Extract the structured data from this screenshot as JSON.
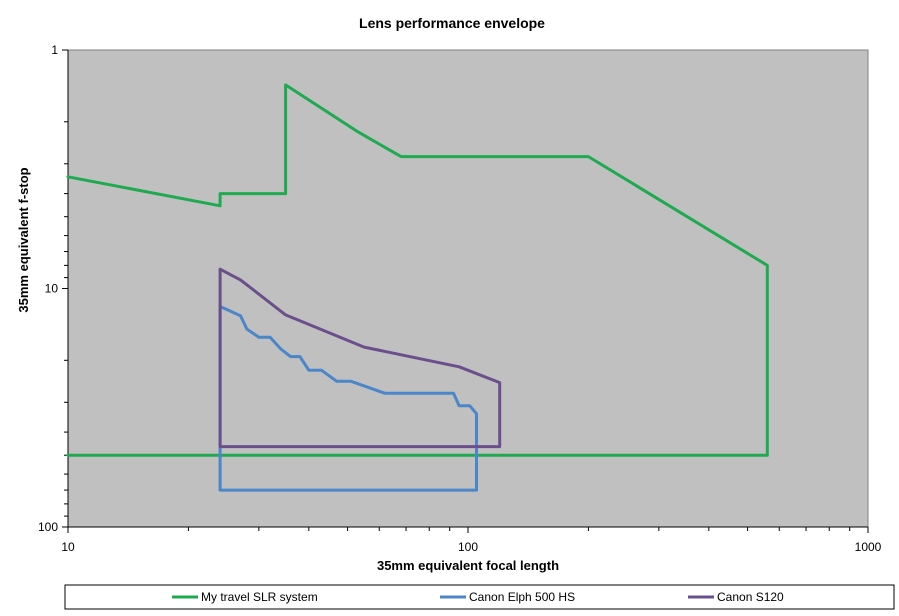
{
  "chart_data": {
    "type": "line",
    "title": "Lens performance envelope",
    "xlabel": "35mm  equivalent focal length",
    "ylabel": "35mm  equivalent f-stop",
    "x_scale": "log",
    "y_scale": "log",
    "y_inverted": true,
    "xlim": [
      10,
      1000
    ],
    "ylim": [
      1,
      100
    ],
    "x_ticks": [
      10,
      100,
      1000
    ],
    "x_tick_labels": [
      "10",
      "100",
      "1000"
    ],
    "y_ticks": [
      1,
      10,
      100
    ],
    "y_tick_labels": [
      "1",
      "10",
      "100"
    ],
    "grid": false,
    "legend_position": "bottom",
    "plot_background": "#c0c0c0",
    "series": [
      {
        "name": "My travel SLR system",
        "color": "#1faa50",
        "points": [
          [
            10,
            3.4
          ],
          [
            24,
            4.5
          ],
          [
            24,
            4.0
          ],
          [
            35,
            4.0
          ],
          [
            35,
            1.4
          ],
          [
            53,
            2.2
          ],
          [
            68,
            2.8
          ],
          [
            200,
            2.8
          ],
          [
            560,
            8.0
          ],
          [
            560,
            50
          ],
          [
            10,
            50
          ]
        ]
      },
      {
        "name": "Canon Elph 500 HS",
        "color": "#4a86c8",
        "points": [
          [
            24,
            70
          ],
          [
            24,
            11.9
          ],
          [
            27,
            13
          ],
          [
            28,
            14.8
          ],
          [
            30,
            16
          ],
          [
            32,
            16
          ],
          [
            34,
            17.9
          ],
          [
            36,
            19.3
          ],
          [
            38,
            19.3
          ],
          [
            40,
            22
          ],
          [
            43,
            22
          ],
          [
            47,
            24.5
          ],
          [
            51,
            24.5
          ],
          [
            62,
            27.5
          ],
          [
            92,
            27.5
          ],
          [
            95,
            31
          ],
          [
            101,
            31
          ],
          [
            105,
            33.5
          ],
          [
            105,
            70
          ],
          [
            24,
            70
          ]
        ]
      },
      {
        "name": "Canon S120",
        "color": "#6b4f8c",
        "points": [
          [
            24,
            8.3
          ],
          [
            27,
            9.2
          ],
          [
            35,
            12.9
          ],
          [
            55,
            17.6
          ],
          [
            95,
            21.3
          ],
          [
            120,
            24.8
          ],
          [
            120,
            46
          ],
          [
            24,
            46
          ],
          [
            24,
            8.3
          ]
        ]
      }
    ]
  }
}
